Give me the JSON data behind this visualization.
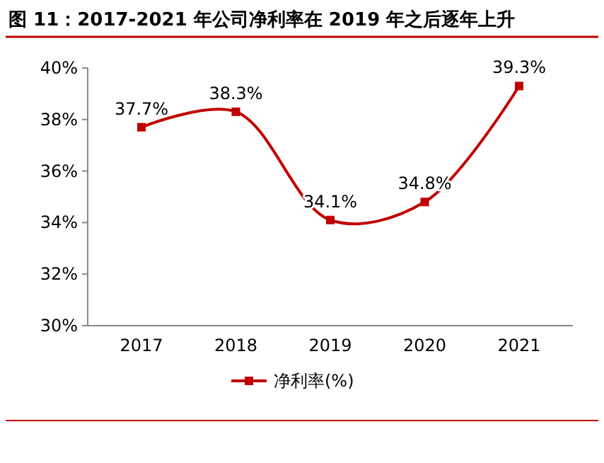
{
  "chart_data": {
    "type": "line",
    "title": "图 11：2017-2021 年公司净利率在 2019 年之后逐年上升",
    "categories": [
      "2017",
      "2018",
      "2019",
      "2020",
      "2021"
    ],
    "series": [
      {
        "name": "净利率(%)",
        "color": "#c00000",
        "values": [
          37.7,
          38.3,
          34.1,
          34.8,
          39.3
        ],
        "value_labels": [
          "37.7%",
          "38.3%",
          "34.1%",
          "34.8%",
          "39.3%"
        ]
      }
    ],
    "ylim": [
      30,
      40
    ],
    "yticks": [
      {
        "value": 30,
        "label": "30%"
      },
      {
        "value": 32,
        "label": "32%"
      },
      {
        "value": 34,
        "label": "34%"
      },
      {
        "value": 36,
        "label": "36%"
      },
      {
        "value": 38,
        "label": "38%"
      },
      {
        "value": 40,
        "label": "40%"
      }
    ],
    "marker": "square",
    "legend": "bottom",
    "grid": false
  }
}
